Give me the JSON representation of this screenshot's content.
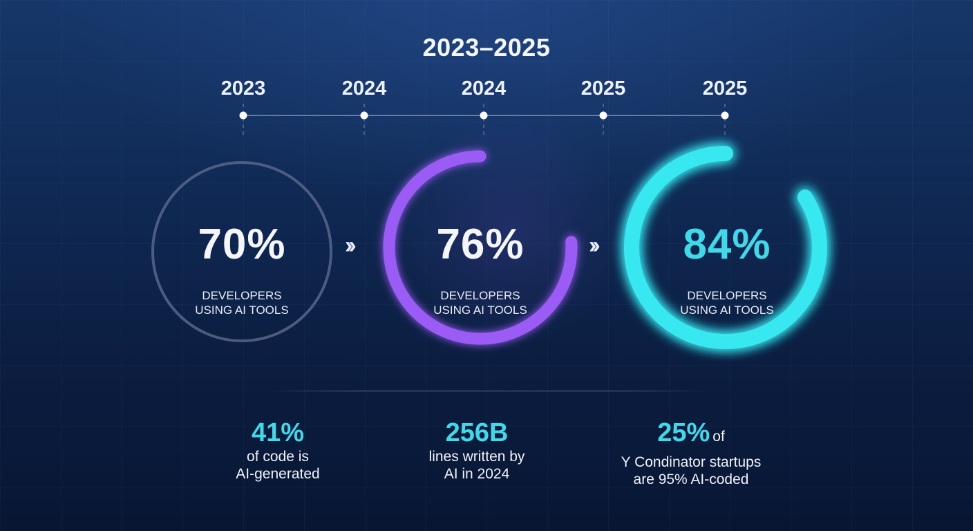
{
  "title": "2023–2025",
  "colors": {
    "ring_1": "#5c6a8c",
    "ring_2": "#9b5cf6",
    "ring_3": "#38e8f0",
    "value_1": "#f4f6fb",
    "value_2": "#f4f6fb",
    "value_3": "#3fd9ea",
    "stat_accent": "#3fd9ea"
  },
  "chart_data": {
    "type": "timeline",
    "timeline": {
      "labels": [
        "2023",
        "2024",
        "2024",
        "2025",
        "2025"
      ]
    },
    "rings": [
      {
        "value": "70%",
        "percent": 70,
        "caption_line1": "DEVELOPERS",
        "caption_line2": "USING AI TOOLS",
        "style": "full-outline"
      },
      {
        "value": "76%",
        "percent": 76,
        "caption_line1": "DEVELOPERS",
        "caption_line2": "USING AI TOOLS",
        "style": "partial-arc"
      },
      {
        "value": "84%",
        "percent": 84,
        "caption_line1": "DEVELOPERS",
        "caption_line2": "USING AI TOOLS",
        "style": "partial-arc"
      }
    ],
    "arrow_icon": "double-chevron-right-icon"
  },
  "stats": [
    {
      "value": "41%",
      "line1": "of code is",
      "line2": "AI-generated"
    },
    {
      "value": "256B",
      "line1": "lines written by",
      "line2": "AI in 2024"
    },
    {
      "value": "25%",
      "suffix": "of",
      "line1": "Y Condinator startups",
      "line2": "are 95% AI-coded"
    }
  ]
}
